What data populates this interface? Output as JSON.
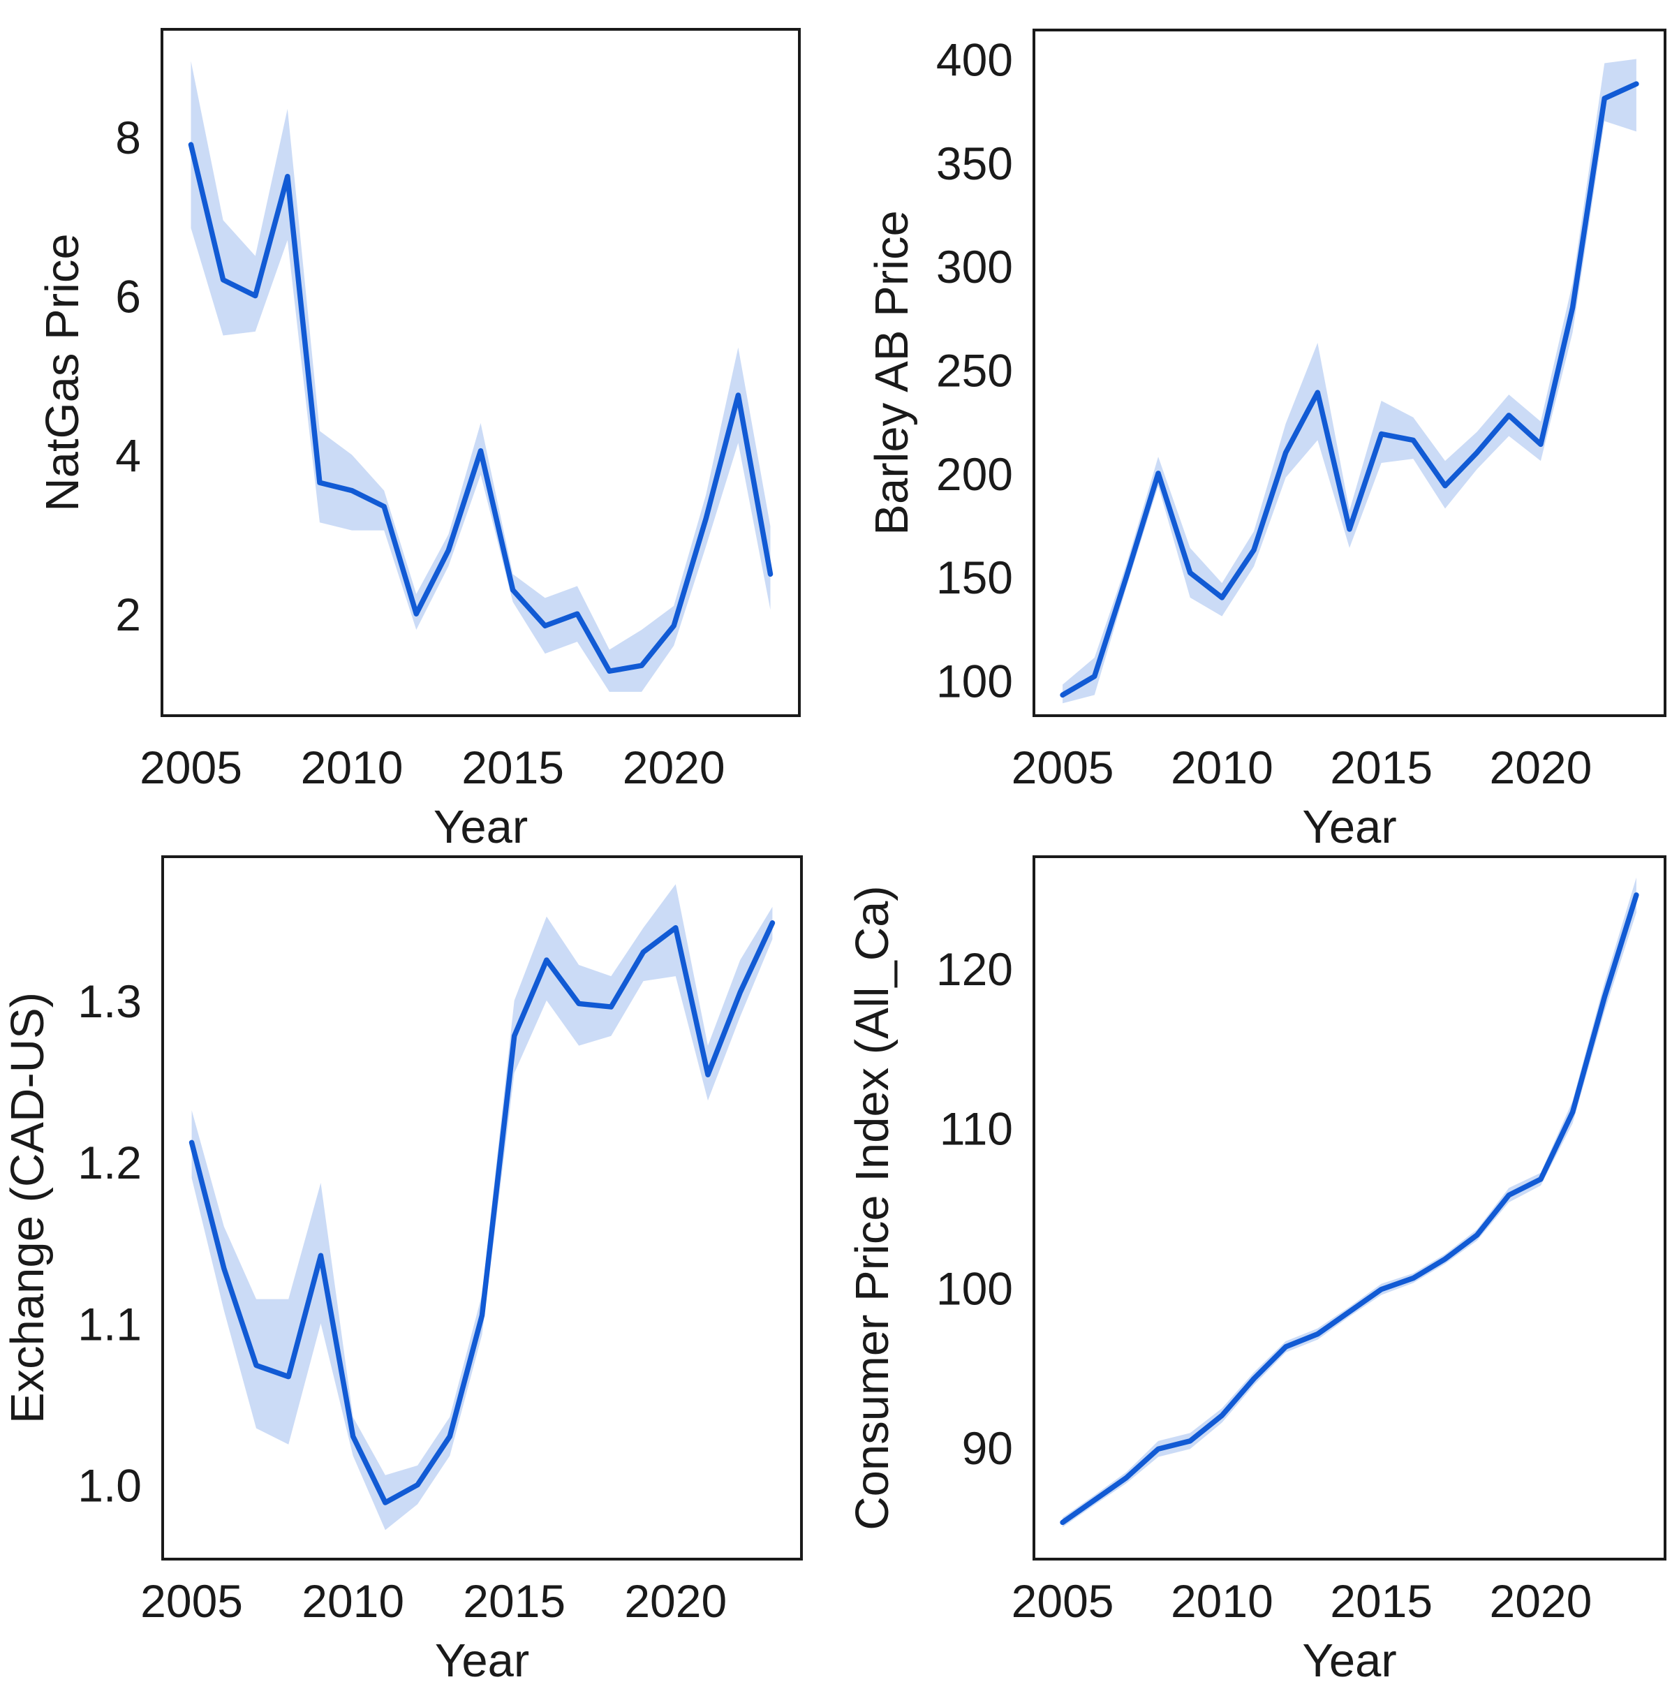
{
  "figure": {
    "background": "#ffffff",
    "line_color": "#115ad4",
    "band_color": "#115ad4",
    "band_opacity": 0.22,
    "spine_color": "#1a1a1a",
    "text_color": "#1a1a1a",
    "shared_xlabel": "Year"
  },
  "chart_data": [
    {
      "type": "line",
      "panel": "top-left",
      "ylabel": "NatGas Price",
      "xlabel": "Year",
      "legend": null,
      "grid": false,
      "x": [
        2005,
        2006,
        2007,
        2008,
        2009,
        2010,
        2011,
        2012,
        2013,
        2014,
        2015,
        2016,
        2017,
        2018,
        2019,
        2020,
        2021,
        2022,
        2023
      ],
      "series": [
        {
          "name": "NatGas Price",
          "values": [
            7.9,
            6.2,
            6.0,
            7.5,
            3.65,
            3.55,
            3.35,
            2.0,
            2.8,
            4.05,
            2.3,
            1.85,
            2.0,
            1.28,
            1.35,
            1.85,
            3.2,
            4.75,
            2.5
          ],
          "band_low": [
            6.85,
            5.5,
            5.55,
            6.7,
            3.15,
            3.05,
            3.05,
            1.8,
            2.6,
            3.75,
            2.15,
            1.5,
            1.65,
            1.02,
            1.02,
            1.6,
            2.85,
            4.15,
            2.05
          ],
          "band_high": [
            8.95,
            6.95,
            6.5,
            8.35,
            4.3,
            4.0,
            3.55,
            2.25,
            3.0,
            4.4,
            2.5,
            2.2,
            2.35,
            1.55,
            1.8,
            2.1,
            3.5,
            5.35,
            3.1
          ]
        }
      ],
      "xlim": [
        2004.1,
        2023.9
      ],
      "ylim": [
        0.72,
        9.35
      ],
      "xticks": [
        2005,
        2010,
        2015,
        2020
      ],
      "xtick_labels": [
        "2005",
        "2010",
        "2015",
        "2020"
      ],
      "yticks": [
        2,
        4,
        6,
        8
      ],
      "ytick_labels": [
        "2",
        "4",
        "6",
        "8"
      ]
    },
    {
      "type": "line",
      "panel": "top-right",
      "ylabel": "Barley AB Price",
      "xlabel": "Year",
      "legend": null,
      "grid": false,
      "x": [
        2005,
        2006,
        2007,
        2008,
        2009,
        2010,
        2011,
        2012,
        2013,
        2014,
        2015,
        2016,
        2017,
        2018,
        2019,
        2020,
        2021,
        2022,
        2023
      ],
      "series": [
        {
          "name": "Barley AB Price",
          "values": [
            93,
            102,
            150,
            200,
            152,
            140,
            163,
            210,
            239,
            173,
            219,
            216,
            194,
            210,
            228,
            214,
            280,
            381,
            388
          ],
          "band_low": [
            89,
            93,
            145,
            194,
            140,
            131,
            155,
            198,
            216,
            164,
            205,
            207,
            183,
            202,
            218,
            206,
            268,
            370,
            365
          ],
          "band_high": [
            98,
            111,
            156,
            208,
            164,
            147,
            172,
            224,
            263,
            182,
            235,
            227,
            206,
            220,
            238,
            225,
            292,
            398,
            400
          ]
        }
      ],
      "xlim": [
        2004.1,
        2023.9
      ],
      "ylim": [
        83,
        414
      ],
      "xticks": [
        2005,
        2010,
        2015,
        2020
      ],
      "xtick_labels": [
        "2005",
        "2010",
        "2015",
        "2020"
      ],
      "yticks": [
        100,
        150,
        200,
        250,
        300,
        350,
        400
      ],
      "ytick_labels": [
        "100",
        "150",
        "200",
        "250",
        "300",
        "350",
        "400"
      ]
    },
    {
      "type": "line",
      "panel": "bottom-left",
      "ylabel": "Exchange (CAD-US)",
      "xlabel": "Year",
      "legend": null,
      "grid": false,
      "x": [
        2005,
        2006,
        2007,
        2008,
        2009,
        2010,
        2011,
        2012,
        2013,
        2014,
        2015,
        2016,
        2017,
        2018,
        2019,
        2020,
        2021,
        2022,
        2023
      ],
      "series": [
        {
          "name": "Exchange (CAD-US)",
          "values": [
            1.212,
            1.134,
            1.074,
            1.067,
            1.142,
            1.03,
            0.989,
            1.0,
            1.03,
            1.105,
            1.278,
            1.325,
            1.298,
            1.296,
            1.33,
            1.345,
            1.254,
            1.305,
            1.348
          ],
          "band_low": [
            1.19,
            1.108,
            1.035,
            1.025,
            1.1,
            1.018,
            0.972,
            0.988,
            1.018,
            1.093,
            1.255,
            1.3,
            1.272,
            1.278,
            1.312,
            1.315,
            1.238,
            1.29,
            1.338
          ],
          "band_high": [
            1.232,
            1.16,
            1.115,
            1.115,
            1.187,
            1.042,
            1.006,
            1.012,
            1.042,
            1.118,
            1.3,
            1.352,
            1.322,
            1.315,
            1.345,
            1.372,
            1.272,
            1.325,
            1.358
          ]
        }
      ],
      "xlim": [
        2004.1,
        2023.9
      ],
      "ylim": [
        0.954,
        1.389
      ],
      "xticks": [
        2005,
        2010,
        2015,
        2020
      ],
      "xtick_labels": [
        "2005",
        "2010",
        "2015",
        "2020"
      ],
      "yticks": [
        1.0,
        1.1,
        1.2,
        1.3
      ],
      "ytick_labels": [
        "1.0",
        "1.1",
        "1.2",
        "1.3"
      ]
    },
    {
      "type": "line",
      "panel": "bottom-right",
      "ylabel": "Consumer Price Index (All_Ca)",
      "xlabel": "Year",
      "legend": null,
      "grid": false,
      "x": [
        2005,
        2006,
        2007,
        2008,
        2009,
        2010,
        2011,
        2012,
        2013,
        2014,
        2015,
        2016,
        2017,
        2018,
        2019,
        2020,
        2021,
        2022,
        2023
      ],
      "series": [
        {
          "name": "Consumer Price Index (All_Ca)",
          "values": [
            85.3,
            86.7,
            88.1,
            89.9,
            90.4,
            92.0,
            94.3,
            96.3,
            97.1,
            98.5,
            99.9,
            100.6,
            101.8,
            103.3,
            105.8,
            106.8,
            111.0,
            118.2,
            124.6
          ],
          "band_low": [
            85.0,
            86.4,
            87.75,
            89.4,
            89.9,
            91.55,
            93.9,
            95.95,
            96.75,
            98.2,
            99.55,
            100.3,
            101.5,
            102.95,
            105.35,
            106.4,
            110.3,
            117.3,
            123.5
          ],
          "band_high": [
            85.6,
            87.0,
            88.45,
            90.4,
            90.9,
            92.45,
            94.7,
            96.65,
            97.45,
            98.8,
            100.25,
            100.9,
            102.1,
            103.65,
            106.25,
            107.2,
            111.7,
            119.1,
            125.7
          ]
        }
      ],
      "xlim": [
        2004.1,
        2023.9
      ],
      "ylim": [
        83,
        127
      ],
      "xticks": [
        2005,
        2010,
        2015,
        2020
      ],
      "xtick_labels": [
        "2005",
        "2010",
        "2015",
        "2020"
      ],
      "yticks": [
        90,
        100,
        110,
        120
      ],
      "ytick_labels": [
        "90",
        "100",
        "110",
        "120"
      ]
    }
  ]
}
